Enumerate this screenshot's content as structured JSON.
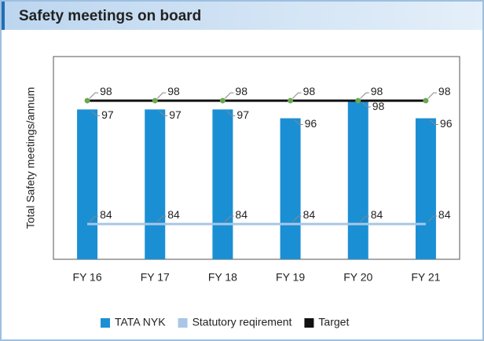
{
  "chart_data": {
    "type": "bar",
    "title": "Safety meetings on board",
    "y_label": "Total Safety meetings/annum",
    "categories": [
      "FY 16",
      "FY 17",
      "FY 18",
      "FY 19",
      "FY 20",
      "FY 21"
    ],
    "series": [
      {
        "name": "TATA NYK",
        "color": "#1b8fd4",
        "type": "bar",
        "values": [
          97,
          97,
          97,
          96,
          98,
          96
        ]
      },
      {
        "name": "Statutory reqirement",
        "color": "#a9c6e6",
        "type": "line",
        "values": [
          84,
          84,
          84,
          84,
          84,
          84
        ]
      },
      {
        "name": "Target",
        "color": "#111111",
        "type": "line",
        "marker_color": "#6aa84f",
        "values": [
          98,
          98,
          98,
          98,
          98,
          98
        ]
      }
    ],
    "ylim": [
      80,
      103
    ]
  }
}
